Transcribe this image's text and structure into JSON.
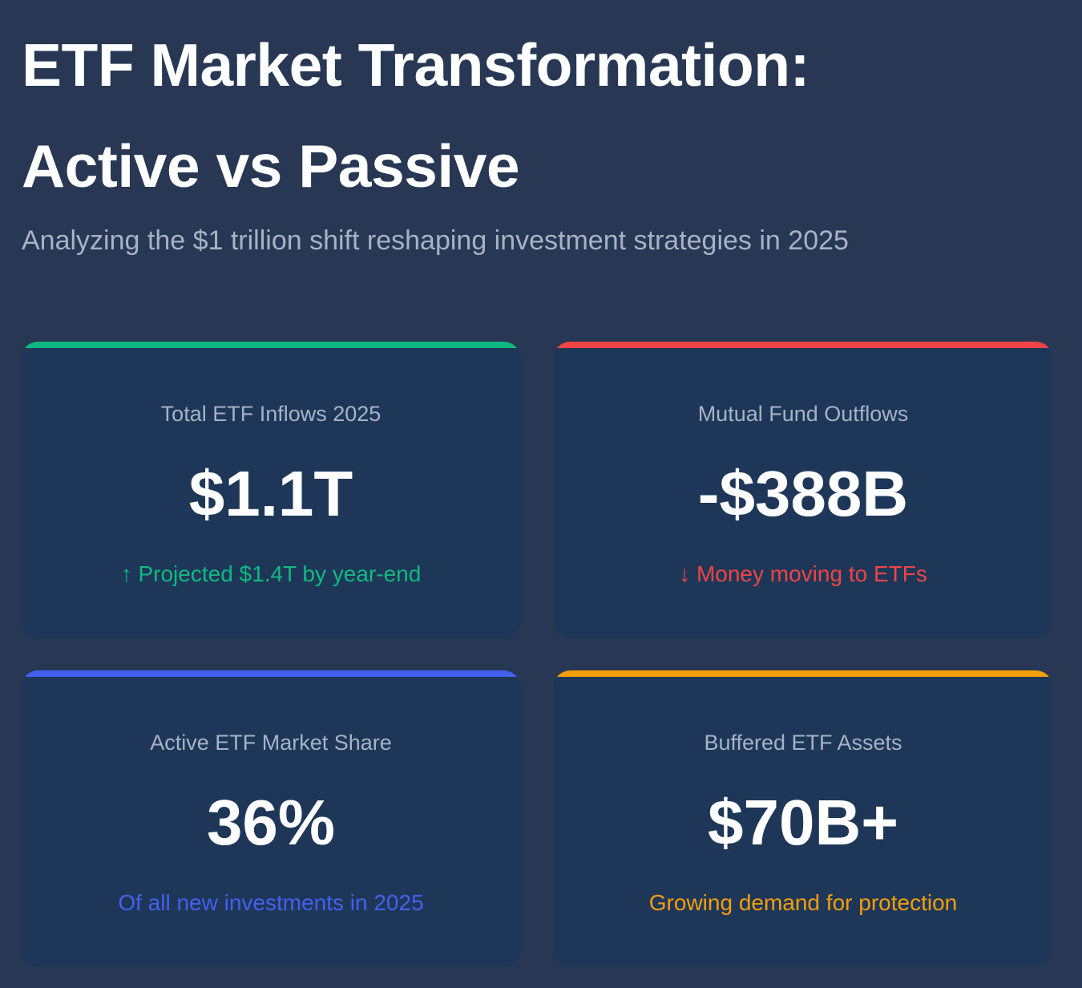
{
  "header": {
    "title_line1": "ETF Market Transformation:",
    "title_line2": "Active vs Passive",
    "subtitle": "Analyzing the $1 trillion shift reshaping investment strategies in 2025"
  },
  "cards": [
    {
      "label": "Total ETF Inflows 2025",
      "value": "$1.1T",
      "note": "↑ Projected $1.4T by year-end",
      "accent": "#10b981"
    },
    {
      "label": "Mutual Fund Outflows",
      "value": "-$388B",
      "note": "↓ Money moving to ETFs",
      "accent": "#ef4444"
    },
    {
      "label": "Active ETF Market Share",
      "value": "36%",
      "note": "Of all new investments in 2025",
      "accent": "#4361ee"
    },
    {
      "label": "Buffered ETF Assets",
      "value": "$70B+",
      "note": "Growing demand for protection",
      "accent": "#f59e0b"
    }
  ]
}
